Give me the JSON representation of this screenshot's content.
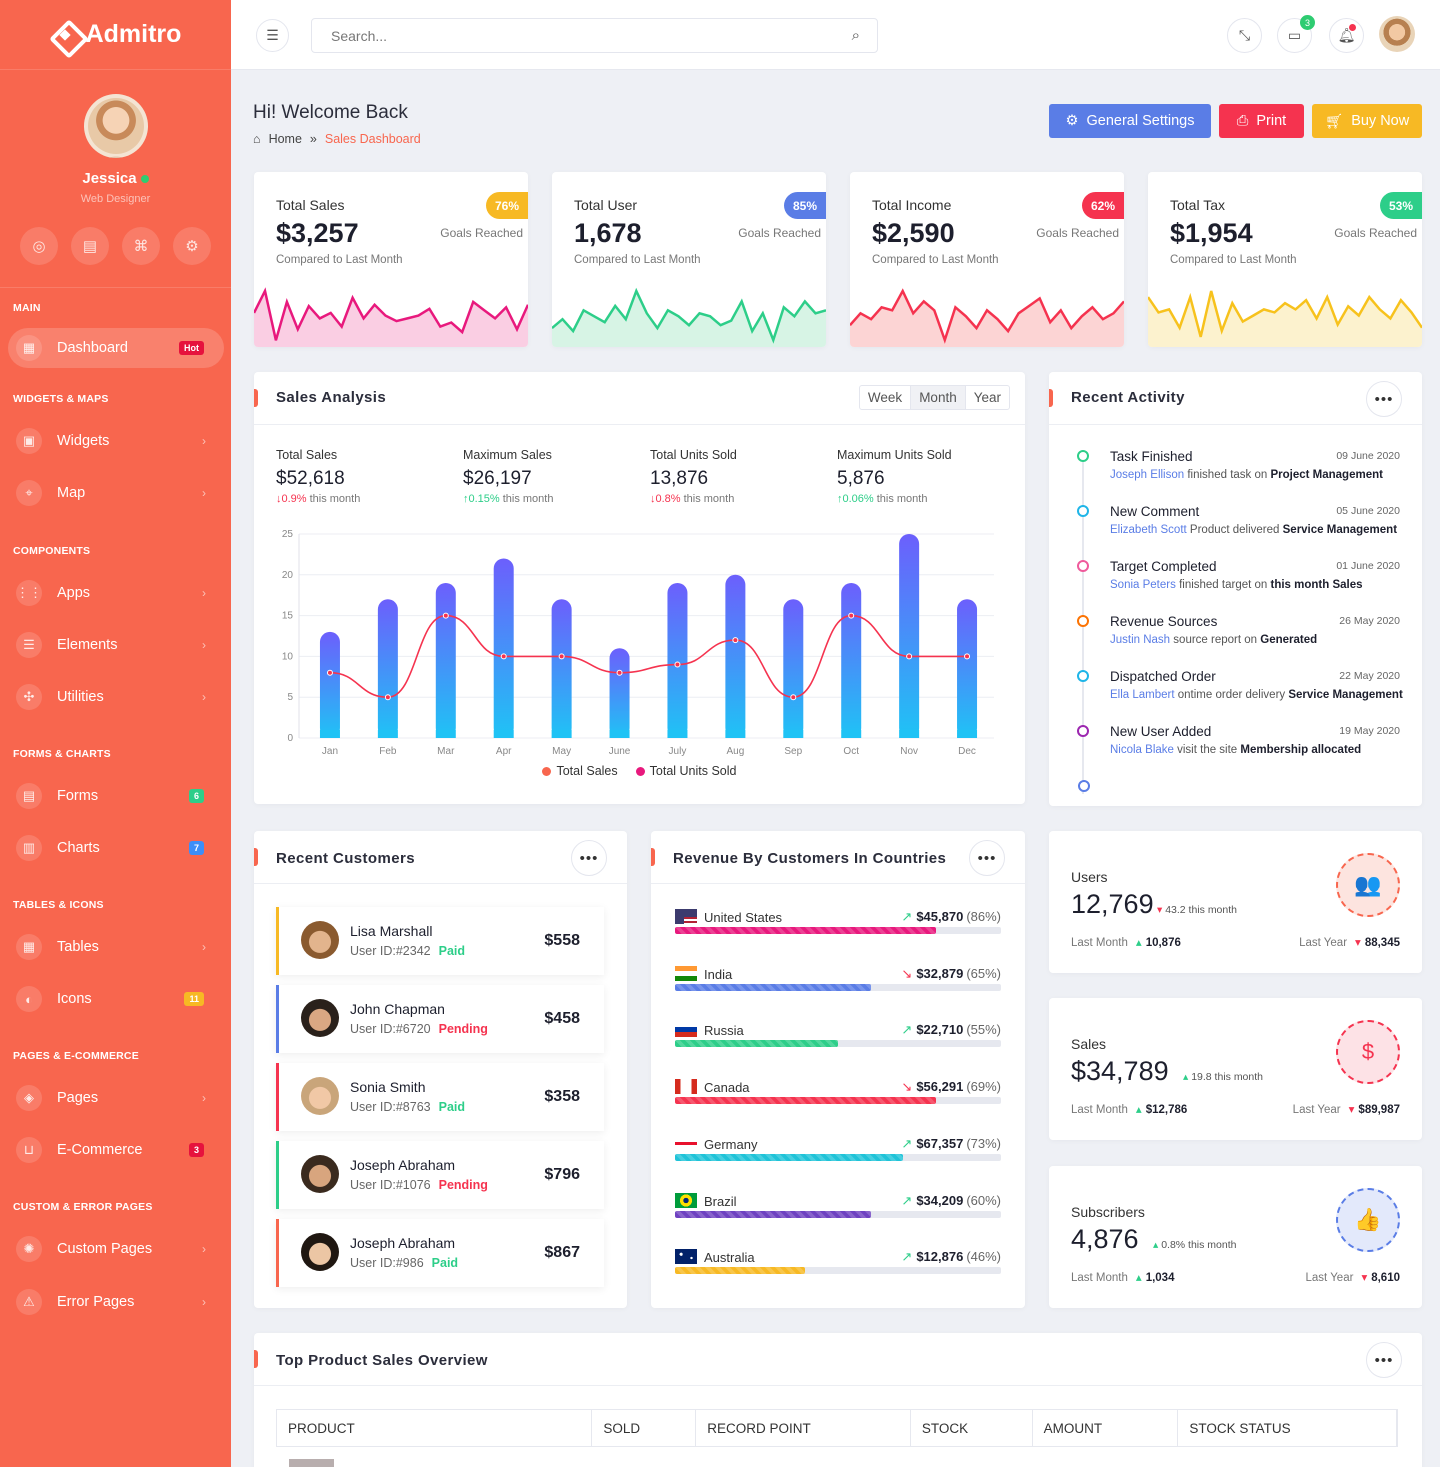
{
  "brand": {
    "name": "Admitro"
  },
  "profile": {
    "name": "Jessica",
    "role": "Web Designer"
  },
  "sidebar": {
    "sections": [
      {
        "label": "Main",
        "y": 302
      },
      {
        "label": "Widgets & Maps",
        "y": 393
      },
      {
        "label": "Components",
        "y": 545
      },
      {
        "label": "Forms & Charts",
        "y": 748
      },
      {
        "label": "Tables & Icons",
        "y": 899
      },
      {
        "label": "Pages & E-commerce",
        "y": 1050
      },
      {
        "label": "Custom & Error Pages",
        "y": 1201
      }
    ],
    "items": [
      {
        "label": "Dashboard",
        "icon": "dashboard-icon",
        "badge": "Hot",
        "badge_color": "#e6123d",
        "active": true
      },
      {
        "label": "Widgets",
        "icon": "widgets-icon"
      },
      {
        "label": "Map",
        "icon": "map-pin-icon"
      },
      {
        "label": "Apps",
        "icon": "apps-grid-icon"
      },
      {
        "label": "Elements",
        "icon": "elements-icon"
      },
      {
        "label": "Utilities",
        "icon": "utilities-icon"
      },
      {
        "label": "Forms",
        "icon": "forms-icon",
        "badge": "6",
        "badge_color": "#2dce89"
      },
      {
        "label": "Charts",
        "icon": "charts-icon",
        "badge": "7",
        "badge_color": "#3d8ef8"
      },
      {
        "label": "Tables",
        "icon": "tables-icon"
      },
      {
        "label": "Icons",
        "icon": "palette-icon",
        "badge": "11",
        "badge_color": "#f7b924"
      },
      {
        "label": "Pages",
        "icon": "layers-icon"
      },
      {
        "label": "E-Commerce",
        "icon": "basket-icon",
        "badge": "3",
        "badge_color": "#e6123d"
      },
      {
        "label": "Custom Pages",
        "icon": "custom-icon"
      },
      {
        "label": "Error Pages",
        "icon": "warning-icon"
      }
    ]
  },
  "topbar": {
    "search_placeholder": "Search...",
    "messages_count": "3"
  },
  "header": {
    "title": "Hi! Welcome Back",
    "breadcrumb": [
      "Home",
      "Sales Dashboard"
    ],
    "buttons": {
      "settings": "General Settings",
      "print": "Print",
      "buy": "Buy Now"
    }
  },
  "stats": [
    {
      "label": "Total Sales",
      "value": "$3,257",
      "pct": "76%",
      "goal": "Goals Reached",
      "compare": "Compared to Last Month",
      "color": "#f7b924",
      "line": "#e8197d",
      "fill": "#f8bdd9",
      "series": [
        22,
        38,
        2,
        30,
        10,
        27,
        18,
        22,
        12,
        33,
        18,
        28,
        20,
        16,
        18,
        20,
        25,
        12,
        15,
        8,
        30,
        24,
        18,
        26,
        10,
        28
      ]
    },
    {
      "label": "Total User",
      "value": "1,678",
      "pct": "85%",
      "goal": "Goals Reached",
      "compare": "Compared to Last Month",
      "color": "#5a7de6",
      "line": "#2dce89",
      "fill": "#c9f0dc",
      "series": [
        10,
        16,
        8,
        22,
        18,
        14,
        25,
        16,
        35,
        20,
        10,
        22,
        18,
        12,
        20,
        18,
        12,
        15,
        28,
        8,
        20,
        2,
        24,
        18,
        28,
        20,
        22
      ]
    },
    {
      "label": "Total Income",
      "value": "$2,590",
      "pct": "62%",
      "goal": "Goals Reached",
      "compare": "Compared to Last Month",
      "color": "#f5334f",
      "line": "#f5334f",
      "fill": "#fbc6c6",
      "series": [
        12,
        20,
        16,
        24,
        22,
        35,
        20,
        28,
        22,
        2,
        24,
        18,
        10,
        22,
        16,
        8,
        20,
        25,
        30,
        14,
        22,
        10,
        18,
        24,
        16,
        20,
        28
      ]
    },
    {
      "label": "Total Tax",
      "value": "$1,954",
      "pct": "53%",
      "goal": "Goals Reached",
      "compare": "Compared to Last Month",
      "color": "#2dce89",
      "line": "#f7c21d",
      "fill": "#fbedbd",
      "series": [
        30,
        20,
        22,
        10,
        30,
        4,
        34,
        8,
        26,
        14,
        18,
        22,
        20,
        26,
        22,
        28,
        16,
        30,
        12,
        24,
        18,
        30,
        22,
        16,
        28,
        20,
        10
      ]
    }
  ],
  "sales_analysis": {
    "title": "Sales Analysis",
    "tabs": [
      "Week",
      "Month",
      "Year"
    ],
    "active_tab": "Month",
    "stats": [
      {
        "title": "Total Sales",
        "value": "$52,618",
        "delta": "0.9%",
        "dir": "down",
        "suffix": "this month"
      },
      {
        "title": "Maximum Sales",
        "value": "$26,197",
        "delta": "0.15%",
        "dir": "up",
        "suffix": "this month"
      },
      {
        "title": "Total Units Sold",
        "value": "13,876",
        "delta": "0.8%",
        "dir": "down",
        "suffix": "this month"
      },
      {
        "title": "Maximum Units Sold",
        "value": "5,876",
        "delta": "0.06%",
        "dir": "up",
        "suffix": "this month"
      }
    ]
  },
  "chart_data": {
    "type": "bar",
    "categories": [
      "Jan",
      "Feb",
      "Mar",
      "Apr",
      "May",
      "June",
      "July",
      "Aug",
      "Sep",
      "Oct",
      "Nov",
      "Dec"
    ],
    "series": [
      {
        "name": "Total Sales",
        "type": "bar",
        "values": [
          13,
          17,
          19,
          22,
          17,
          11,
          19,
          20,
          17,
          19,
          25,
          17
        ],
        "color": "#6c5ffc"
      },
      {
        "name": "Total Units Sold",
        "type": "line",
        "values": [
          8,
          5,
          15,
          10,
          10,
          8,
          9,
          12,
          5,
          15,
          10,
          10
        ],
        "color": "#f5334f"
      }
    ],
    "ylim": [
      0,
      25
    ],
    "yticks": [
      0,
      5,
      10,
      15,
      20,
      25
    ],
    "grid": true,
    "legend": "bottom",
    "legend_items": [
      {
        "name": "Total Sales",
        "color": "#f8664e"
      },
      {
        "name": "Total Units Sold",
        "color": "#e8197d"
      }
    ]
  },
  "recent_activity": {
    "title": "Recent Activity",
    "items": [
      {
        "title": "Task Finished",
        "date": "09 June 2020",
        "who": "Joseph Ellison",
        "text": "finished task on",
        "strong": "Project Management",
        "color": "#2dce89"
      },
      {
        "title": "New Comment",
        "date": "05 June 2020",
        "who": "Elizabeth Scott",
        "text": "Product delivered",
        "strong": "Service Management",
        "color": "#1fb5e8"
      },
      {
        "title": "Target Completed",
        "date": "01 June 2020",
        "who": "Sonia Peters",
        "text": "finished target on",
        "strong": "this month Sales",
        "color": "#ef5b9c"
      },
      {
        "title": "Revenue Sources",
        "date": "26 May 2020",
        "who": "Justin Nash",
        "text": "source report on",
        "strong": "Generated",
        "color": "#fc7303"
      },
      {
        "title": "Dispatched Order",
        "date": "22 May 2020",
        "who": "Ella Lambert",
        "text": "ontime order delivery",
        "strong": "Service Management",
        "color": "#1fb5e8"
      },
      {
        "title": "New User Added",
        "date": "19 May 2020",
        "who": "Nicola Blake",
        "text": "visit the site",
        "strong": "Membership allocated",
        "color": "#9c27b0"
      }
    ]
  },
  "recent_customers": {
    "title": "Recent Customers",
    "items": [
      {
        "name": "Lisa Marshall",
        "id": "User ID:#2342",
        "status": "Paid",
        "amount": "$558",
        "border": "#f7b924",
        "status_color": "#2dce89",
        "skin": "#e2b48d",
        "hair": "#8a5a2f"
      },
      {
        "name": "John Chapman",
        "id": "User ID:#6720",
        "status": "Pending",
        "amount": "$458",
        "border": "#5a7de6",
        "status_color": "#f5334f",
        "skin": "#d9a783",
        "hair": "#2a211b"
      },
      {
        "name": "Sonia Smith",
        "id": "User ID:#8763",
        "status": "Paid",
        "amount": "$358",
        "border": "#f5334f",
        "status_color": "#2dce89",
        "skin": "#f1c8a6",
        "hair": "#c9a57a"
      },
      {
        "name": "Joseph Abraham",
        "id": "User ID:#1076",
        "status": "Pending",
        "amount": "$796",
        "border": "#2dce89",
        "status_color": "#f5334f",
        "skin": "#d8a57e",
        "hair": "#3a2a1e"
      },
      {
        "name": "Joseph Abraham",
        "id": "User ID:#986",
        "status": "Paid",
        "amount": "$867",
        "border": "#f8664e",
        "status_color": "#2dce89",
        "skin": "#ecc6a4",
        "hair": "#1f1711"
      }
    ]
  },
  "revenue_countries": {
    "title": "Revenue By Customers In Countries",
    "items": [
      {
        "country": "United States",
        "value": "$45,870",
        "pct": "(86%)",
        "fill": 0.8,
        "color": "#e8197d",
        "trend": "up",
        "flag": "flag-us"
      },
      {
        "country": "India",
        "value": "$32,879",
        "pct": "(65%)",
        "fill": 0.6,
        "color": "#5a7de6",
        "trend": "down",
        "flag": "flag-in"
      },
      {
        "country": "Russia",
        "value": "$22,710",
        "pct": "(55%)",
        "fill": 0.5,
        "color": "#2dce89",
        "trend": "up",
        "flag": "flag-ru"
      },
      {
        "country": "Canada",
        "value": "$56,291",
        "pct": "(69%)",
        "fill": 0.8,
        "color": "#f5334f",
        "trend": "down",
        "flag": "flag-ca"
      },
      {
        "country": "Germany",
        "value": "$67,357",
        "pct": "(73%)",
        "fill": 0.7,
        "color": "#1fc3d8",
        "trend": "up",
        "flag": "flag-ge"
      },
      {
        "country": "Brazil",
        "value": "$34,209",
        "pct": "(60%)",
        "fill": 0.6,
        "color": "#6f42c1",
        "trend": "up",
        "flag": "flag-br"
      },
      {
        "country": "Australia",
        "value": "$12,876",
        "pct": "(46%)",
        "fill": 0.4,
        "color": "#f7b924",
        "trend": "up",
        "flag": "flag-au"
      }
    ]
  },
  "kpis": [
    {
      "title": "Users",
      "value": "12,769",
      "change": "43.2 this month",
      "dir": "down",
      "last_month": "10,876",
      "lm_dir": "up",
      "last_year": "88,345",
      "ly_dir": "down",
      "icon": "users-icon",
      "color": "#f8664e",
      "bg": "#fde4df",
      "glyph": "👥"
    },
    {
      "title": "Sales",
      "value": "$34,789",
      "change": "19.8 this month",
      "dir": "up",
      "last_month": "$12,786",
      "lm_dir": "up",
      "last_year": "$89,987",
      "ly_dir": "down",
      "icon": "money-hand-icon",
      "color": "#f5334f",
      "bg": "#fde2e6",
      "glyph": "$"
    },
    {
      "title": "Subscribers",
      "value": "4,876",
      "change": "0.8% this month",
      "dir": "up",
      "last_month": "1,034",
      "lm_dir": "up",
      "last_year": "8,610",
      "ly_dir": "down",
      "icon": "thumbs-up-icon",
      "color": "#5a7de6",
      "bg": "#e3e9fb",
      "glyph": "👍"
    }
  ],
  "kpi_labels": {
    "last_month": "Last Month",
    "last_year": "Last Year"
  },
  "top_products": {
    "title": "Top Product Sales Overview",
    "columns": [
      "PRODUCT",
      "SOLD",
      "RECORD POINT",
      "STOCK",
      "AMOUNT",
      "STOCK STATUS"
    ]
  }
}
